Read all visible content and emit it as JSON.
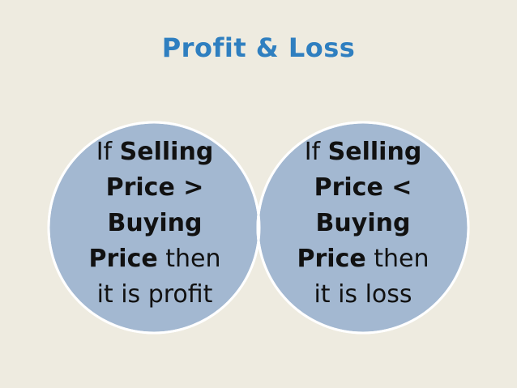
{
  "title": "Profit & Loss",
  "colors": {
    "background": "#eeebe0",
    "title": "#2f7fc0",
    "circle_fill": "#a3b8d1",
    "circle_stroke": "#ffffff",
    "overlap_fill": "#7a9fc6"
  },
  "left_circle": {
    "lines": [
      {
        "plain": "If ",
        "bold": "Selling"
      },
      {
        "bold": "Price >"
      },
      {
        "bold": "Buying"
      },
      {
        "bold": "Price",
        "plain": " then"
      },
      {
        "plain": "it is profit"
      }
    ]
  },
  "right_circle": {
    "lines": [
      {
        "plain": "If ",
        "bold": "Selling"
      },
      {
        "bold": "Price <"
      },
      {
        "bold": "Buying"
      },
      {
        "bold": "Price",
        "plain": " then"
      },
      {
        "plain": "it is loss"
      }
    ]
  }
}
